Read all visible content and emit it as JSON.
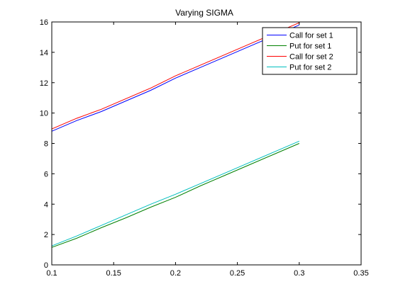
{
  "chart_data": {
    "type": "line",
    "title": "Varying SIGMA",
    "xlabel": "",
    "ylabel": "",
    "xlim": [
      0.1,
      0.35
    ],
    "ylim": [
      0,
      16
    ],
    "xticks": [
      "0.1",
      "0.15",
      "0.2",
      "0.25",
      "0.3",
      "0.35"
    ],
    "yticks": [
      "0",
      "2",
      "4",
      "6",
      "8",
      "10",
      "12",
      "14",
      "16"
    ],
    "grid": false,
    "legend_position": "top-right",
    "x": [
      0.1,
      0.12,
      0.14,
      0.16,
      0.18,
      0.2,
      0.22,
      0.24,
      0.26,
      0.28,
      0.3
    ],
    "series": [
      {
        "name": "Call for set 1",
        "color": "#0000ff",
        "values": [
          8.8,
          9.5,
          10.1,
          10.8,
          11.5,
          12.3,
          13.0,
          13.7,
          14.4,
          15.1,
          15.8
        ]
      },
      {
        "name": "Put for set 1",
        "color": "#008000",
        "values": [
          1.15,
          1.75,
          2.45,
          3.1,
          3.8,
          4.45,
          5.2,
          5.9,
          6.6,
          7.3,
          8.0
        ]
      },
      {
        "name": "Call for set 2",
        "color": "#ff0000",
        "values": [
          8.95,
          9.65,
          10.25,
          10.95,
          11.65,
          12.45,
          13.15,
          13.85,
          14.55,
          15.25,
          15.95
        ]
      },
      {
        "name": "Put for set 2",
        "color": "#00bfbf",
        "values": [
          1.25,
          1.9,
          2.6,
          3.3,
          4.0,
          4.65,
          5.35,
          6.05,
          6.75,
          7.45,
          8.15
        ]
      }
    ]
  }
}
